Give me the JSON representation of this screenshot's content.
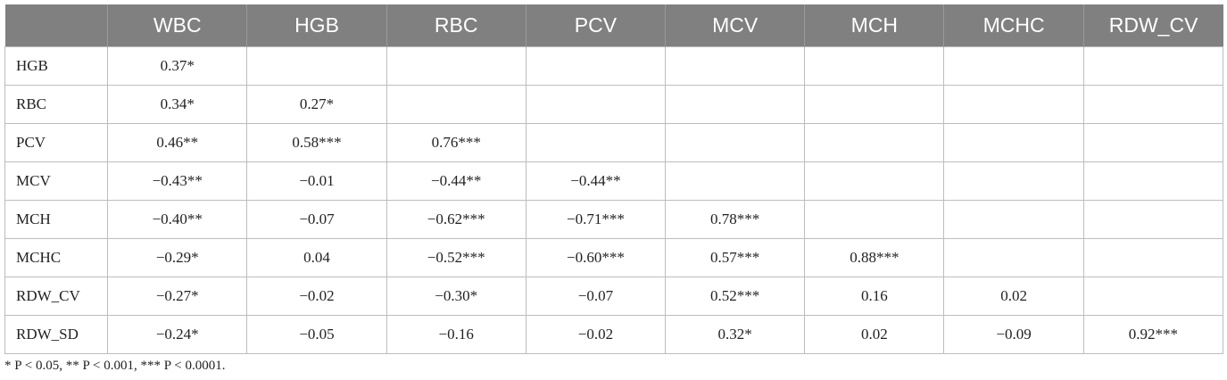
{
  "table": {
    "corner": "",
    "columns": [
      "WBC",
      "HGB",
      "RBC",
      "PCV",
      "MCV",
      "MCH",
      "MCHC",
      "RDW_CV"
    ],
    "rows": [
      {
        "label": "HGB",
        "cells": [
          "0.37*",
          "",
          "",
          "",
          "",
          "",
          "",
          ""
        ]
      },
      {
        "label": "RBC",
        "cells": [
          "0.34*",
          "0.27*",
          "",
          "",
          "",
          "",
          "",
          ""
        ]
      },
      {
        "label": "PCV",
        "cells": [
          "0.46**",
          "0.58***",
          "0.76***",
          "",
          "",
          "",
          "",
          ""
        ]
      },
      {
        "label": "MCV",
        "cells": [
          "−0.43**",
          "−0.01",
          "−0.44**",
          "−0.44**",
          "",
          "",
          "",
          ""
        ]
      },
      {
        "label": "MCH",
        "cells": [
          "−0.40**",
          "−0.07",
          "−0.62***",
          "−0.71***",
          "0.78***",
          "",
          "",
          ""
        ]
      },
      {
        "label": "MCHC",
        "cells": [
          "−0.29*",
          "0.04",
          "−0.52***",
          "−0.60***",
          "0.57***",
          "0.88***",
          "",
          ""
        ]
      },
      {
        "label": "RDW_CV",
        "cells": [
          "−0.27*",
          "−0.02",
          "−0.30*",
          "−0.07",
          "0.52***",
          "0.16",
          "0.02",
          ""
        ]
      },
      {
        "label": "RDW_SD",
        "cells": [
          "−0.24*",
          "−0.05",
          "−0.16",
          "−0.02",
          "0.32*",
          "0.02",
          "−0.09",
          "0.92***"
        ]
      }
    ]
  },
  "footnote": "* P < 0.05, ** P < 0.001, *** P < 0.0001."
}
